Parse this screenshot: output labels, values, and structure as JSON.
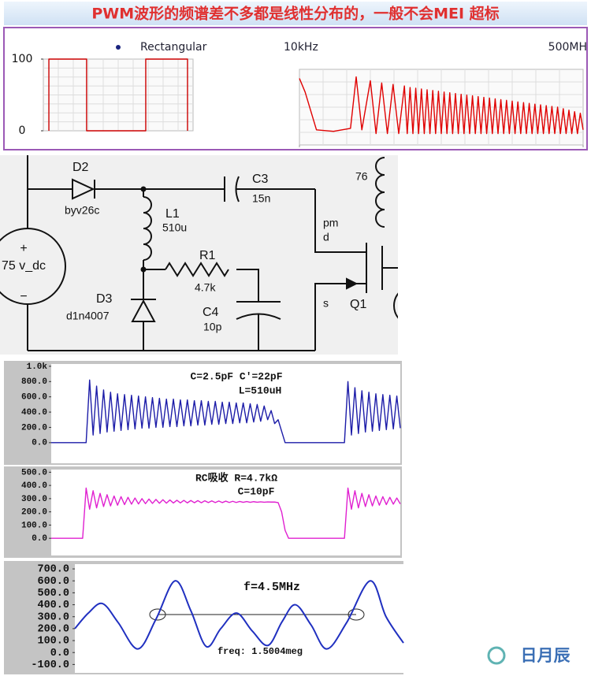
{
  "header": {
    "title": "PWM波形的频谱差不多都是线性分布的，一般不会MEI 超标"
  },
  "circuit": {
    "source": {
      "label": "75 v_dc",
      "plus": "+",
      "minus": "−"
    },
    "components": [
      {
        "name": "D2",
        "value": "byv26c"
      },
      {
        "name": "L1",
        "value": "510u"
      },
      {
        "name": "C3",
        "value": "15n"
      },
      {
        "name": "R1",
        "value": "4.7k"
      },
      {
        "name": "C4",
        "value": "10p"
      },
      {
        "name": "D3",
        "value": "d1n4007"
      },
      {
        "name": "Q1"
      }
    ],
    "nodes": [
      "pm",
      "d",
      "s"
    ],
    "transformer": "76"
  },
  "watermark": "日月辰",
  "chart_data": [
    {
      "type": "line",
      "grid": true,
      "legend": "top",
      "legend_color": "#1a237e",
      "xlim": [
        0,
        100
      ],
      "ylim": [
        0,
        100
      ],
      "yticks": [
        0,
        100
      ],
      "series": [
        {
          "name": "Rectangular",
          "color": "#cc0000",
          "x": [
            3.7,
            3.7,
            28.9,
            28.9,
            68.4,
            68.4,
            96.3,
            96.3
          ],
          "values": [
            0,
            100,
            100,
            0,
            0,
            100,
            100,
            0
          ]
        }
      ]
    },
    {
      "type": "line",
      "grid": true,
      "xlim": [
        0,
        100
      ],
      "ylim": [
        0,
        100
      ],
      "xticks": [
        {
          "value": 0,
          "label": "10kHz"
        },
        {
          "value": 100,
          "label": "500MH"
        }
      ],
      "color": "#e00000",
      "x": [
        0,
        2,
        6,
        12,
        18,
        20,
        22,
        25,
        27,
        29,
        31,
        33,
        35,
        37,
        38,
        39,
        40,
        41,
        42,
        43,
        44,
        45,
        46,
        47,
        48,
        49,
        50,
        51,
        52,
        53,
        54,
        55,
        56,
        57,
        58,
        59,
        60,
        61,
        62,
        63,
        64,
        65,
        66,
        67,
        68,
        69,
        70,
        71,
        72,
        73,
        74,
        75,
        76,
        77,
        78,
        79,
        80,
        81,
        82,
        83,
        84,
        85,
        86,
        87,
        88,
        89,
        90,
        91,
        92,
        93,
        94,
        95,
        96,
        97,
        98,
        99,
        100
      ],
      "values": [
        88,
        70,
        20,
        18,
        22,
        90,
        20,
        85,
        15,
        82,
        15,
        80,
        15,
        78,
        15,
        76,
        15,
        75,
        15,
        74,
        15,
        73,
        15,
        72,
        15,
        71,
        15,
        70,
        15,
        69,
        15,
        68,
        15,
        67,
        15,
        66,
        15,
        65,
        15,
        64,
        15,
        63,
        15,
        62,
        15,
        61,
        15,
        60,
        15,
        59,
        15,
        58,
        15,
        57,
        15,
        56,
        15,
        55,
        15,
        54,
        15,
        53,
        15,
        52,
        15,
        51,
        15,
        50,
        15,
        48,
        15,
        46,
        15,
        44,
        15,
        42,
        20
      ]
    },
    {
      "type": "line",
      "xlim": [
        0,
        100
      ],
      "ylim": [
        -270,
        1030
      ],
      "yticks": [
        {
          "value": 1000,
          "label": "1.0k"
        },
        {
          "value": 800,
          "label": "800.0"
        },
        {
          "value": 600,
          "label": "600.0"
        },
        {
          "value": 400,
          "label": "400.0"
        },
        {
          "value": 200,
          "label": "200.0"
        },
        {
          "value": 0,
          "label": "0.0"
        }
      ],
      "annotations": [
        "C=2.5pF  C'=22pF",
        "L=510uH"
      ],
      "color": "#1c1ca8",
      "x": [
        0,
        10,
        11,
        12,
        13,
        14,
        15,
        16,
        17,
        18,
        19,
        20,
        21,
        22,
        23,
        24,
        25,
        26,
        27,
        28,
        29,
        30,
        31,
        32,
        33,
        34,
        35,
        36,
        37,
        38,
        39,
        40,
        41,
        42,
        43,
        44,
        45,
        46,
        47,
        48,
        49,
        50,
        51,
        52,
        53,
        54,
        55,
        56,
        57,
        58,
        59,
        60,
        61,
        62,
        63,
        64,
        65,
        66,
        67,
        84,
        85,
        86,
        87,
        88,
        89,
        90,
        91,
        92,
        93,
        94,
        95,
        96,
        97,
        98,
        99,
        100
      ],
      "values": [
        0,
        0,
        820,
        100,
        740,
        120,
        690,
        140,
        660,
        150,
        640,
        160,
        630,
        170,
        620,
        180,
        610,
        190,
        600,
        190,
        590,
        200,
        580,
        200,
        570,
        210,
        570,
        210,
        560,
        220,
        560,
        220,
        550,
        230,
        550,
        230,
        540,
        240,
        540,
        240,
        530,
        250,
        530,
        250,
        520,
        260,
        520,
        260,
        510,
        270,
        500,
        280,
        480,
        300,
        420,
        250,
        300,
        150,
        0,
        0,
        800,
        100,
        720,
        120,
        680,
        140,
        660,
        150,
        640,
        160,
        630,
        170,
        620,
        180,
        610,
        190
      ]
    },
    {
      "type": "line",
      "xlim": [
        0,
        100
      ],
      "ylim": [
        -130,
        520
      ],
      "yticks": [
        {
          "value": 500,
          "label": "500.0"
        },
        {
          "value": 400,
          "label": "400.0"
        },
        {
          "value": 300,
          "label": "300.0"
        },
        {
          "value": 200,
          "label": "200.0"
        },
        {
          "value": 100,
          "label": "100.0"
        },
        {
          "value": 0,
          "label": "0.0"
        }
      ],
      "annotations": [
        "RC吸收  R=4.7kΩ",
        "C=10pF"
      ],
      "color": "#e020d0",
      "x": [
        0,
        9,
        10,
        11,
        12,
        13,
        14,
        15,
        16,
        17,
        18,
        19,
        20,
        21,
        22,
        23,
        24,
        25,
        26,
        27,
        28,
        29,
        30,
        31,
        32,
        33,
        34,
        35,
        36,
        37,
        38,
        39,
        40,
        41,
        42,
        43,
        44,
        45,
        46,
        47,
        48,
        49,
        50,
        51,
        52,
        53,
        54,
        55,
        56,
        57,
        58,
        59,
        60,
        61,
        62,
        63,
        64,
        65,
        66,
        67,
        68,
        84,
        85,
        86,
        87,
        88,
        89,
        90,
        91,
        92,
        93,
        94,
        95,
        96,
        97,
        98,
        99,
        100
      ],
      "values": [
        0,
        0,
        380,
        220,
        360,
        230,
        340,
        240,
        330,
        245,
        320,
        250,
        315,
        255,
        310,
        258,
        305,
        260,
        300,
        262,
        297,
        264,
        294,
        265,
        292,
        266,
        290,
        267,
        288,
        268,
        287,
        268,
        286,
        269,
        285,
        269,
        284,
        270,
        283,
        270,
        282,
        270,
        281,
        271,
        280,
        271,
        279,
        272,
        278,
        272,
        277,
        273,
        276,
        273,
        275,
        274,
        274,
        270,
        200,
        60,
        0,
        0,
        380,
        220,
        360,
        230,
        340,
        240,
        330,
        245,
        320,
        250,
        315,
        255,
        310,
        258,
        305,
        260
      ]
    },
    {
      "type": "line",
      "smooth": true,
      "xlim": [
        0,
        100
      ],
      "ylim": [
        -170,
        740
      ],
      "yticks": [
        {
          "value": 700,
          "label": "700.0"
        },
        {
          "value": 600,
          "label": "600.0"
        },
        {
          "value": 500,
          "label": "500.0"
        },
        {
          "value": 400,
          "label": "400.0"
        },
        {
          "value": 300,
          "label": "300.0"
        },
        {
          "value": 200,
          "label": "200.0"
        },
        {
          "value": 100,
          "label": "100.0"
        },
        {
          "value": 0,
          "label": "0.0"
        },
        {
          "value": -100,
          "label": "-100.0"
        }
      ],
      "annotations": [
        "f=4.5MHz",
        "freq: 1.5004meg"
      ],
      "color": "#2030c0",
      "x": [
        0,
        4.1,
        8.4,
        13.2,
        19.2,
        24.7,
        30.5,
        35.3,
        40.0,
        44.4,
        49.2,
        54.0,
        58.8,
        63.1,
        67.1,
        71.9,
        76.7,
        82.7,
        89.9,
        94.7,
        100
      ],
      "values": [
        200,
        330,
        410,
        250,
        30,
        280,
        600,
        350,
        50,
        200,
        330,
        180,
        60,
        260,
        400,
        230,
        30,
        250,
        600,
        300,
        80
      ]
    }
  ]
}
